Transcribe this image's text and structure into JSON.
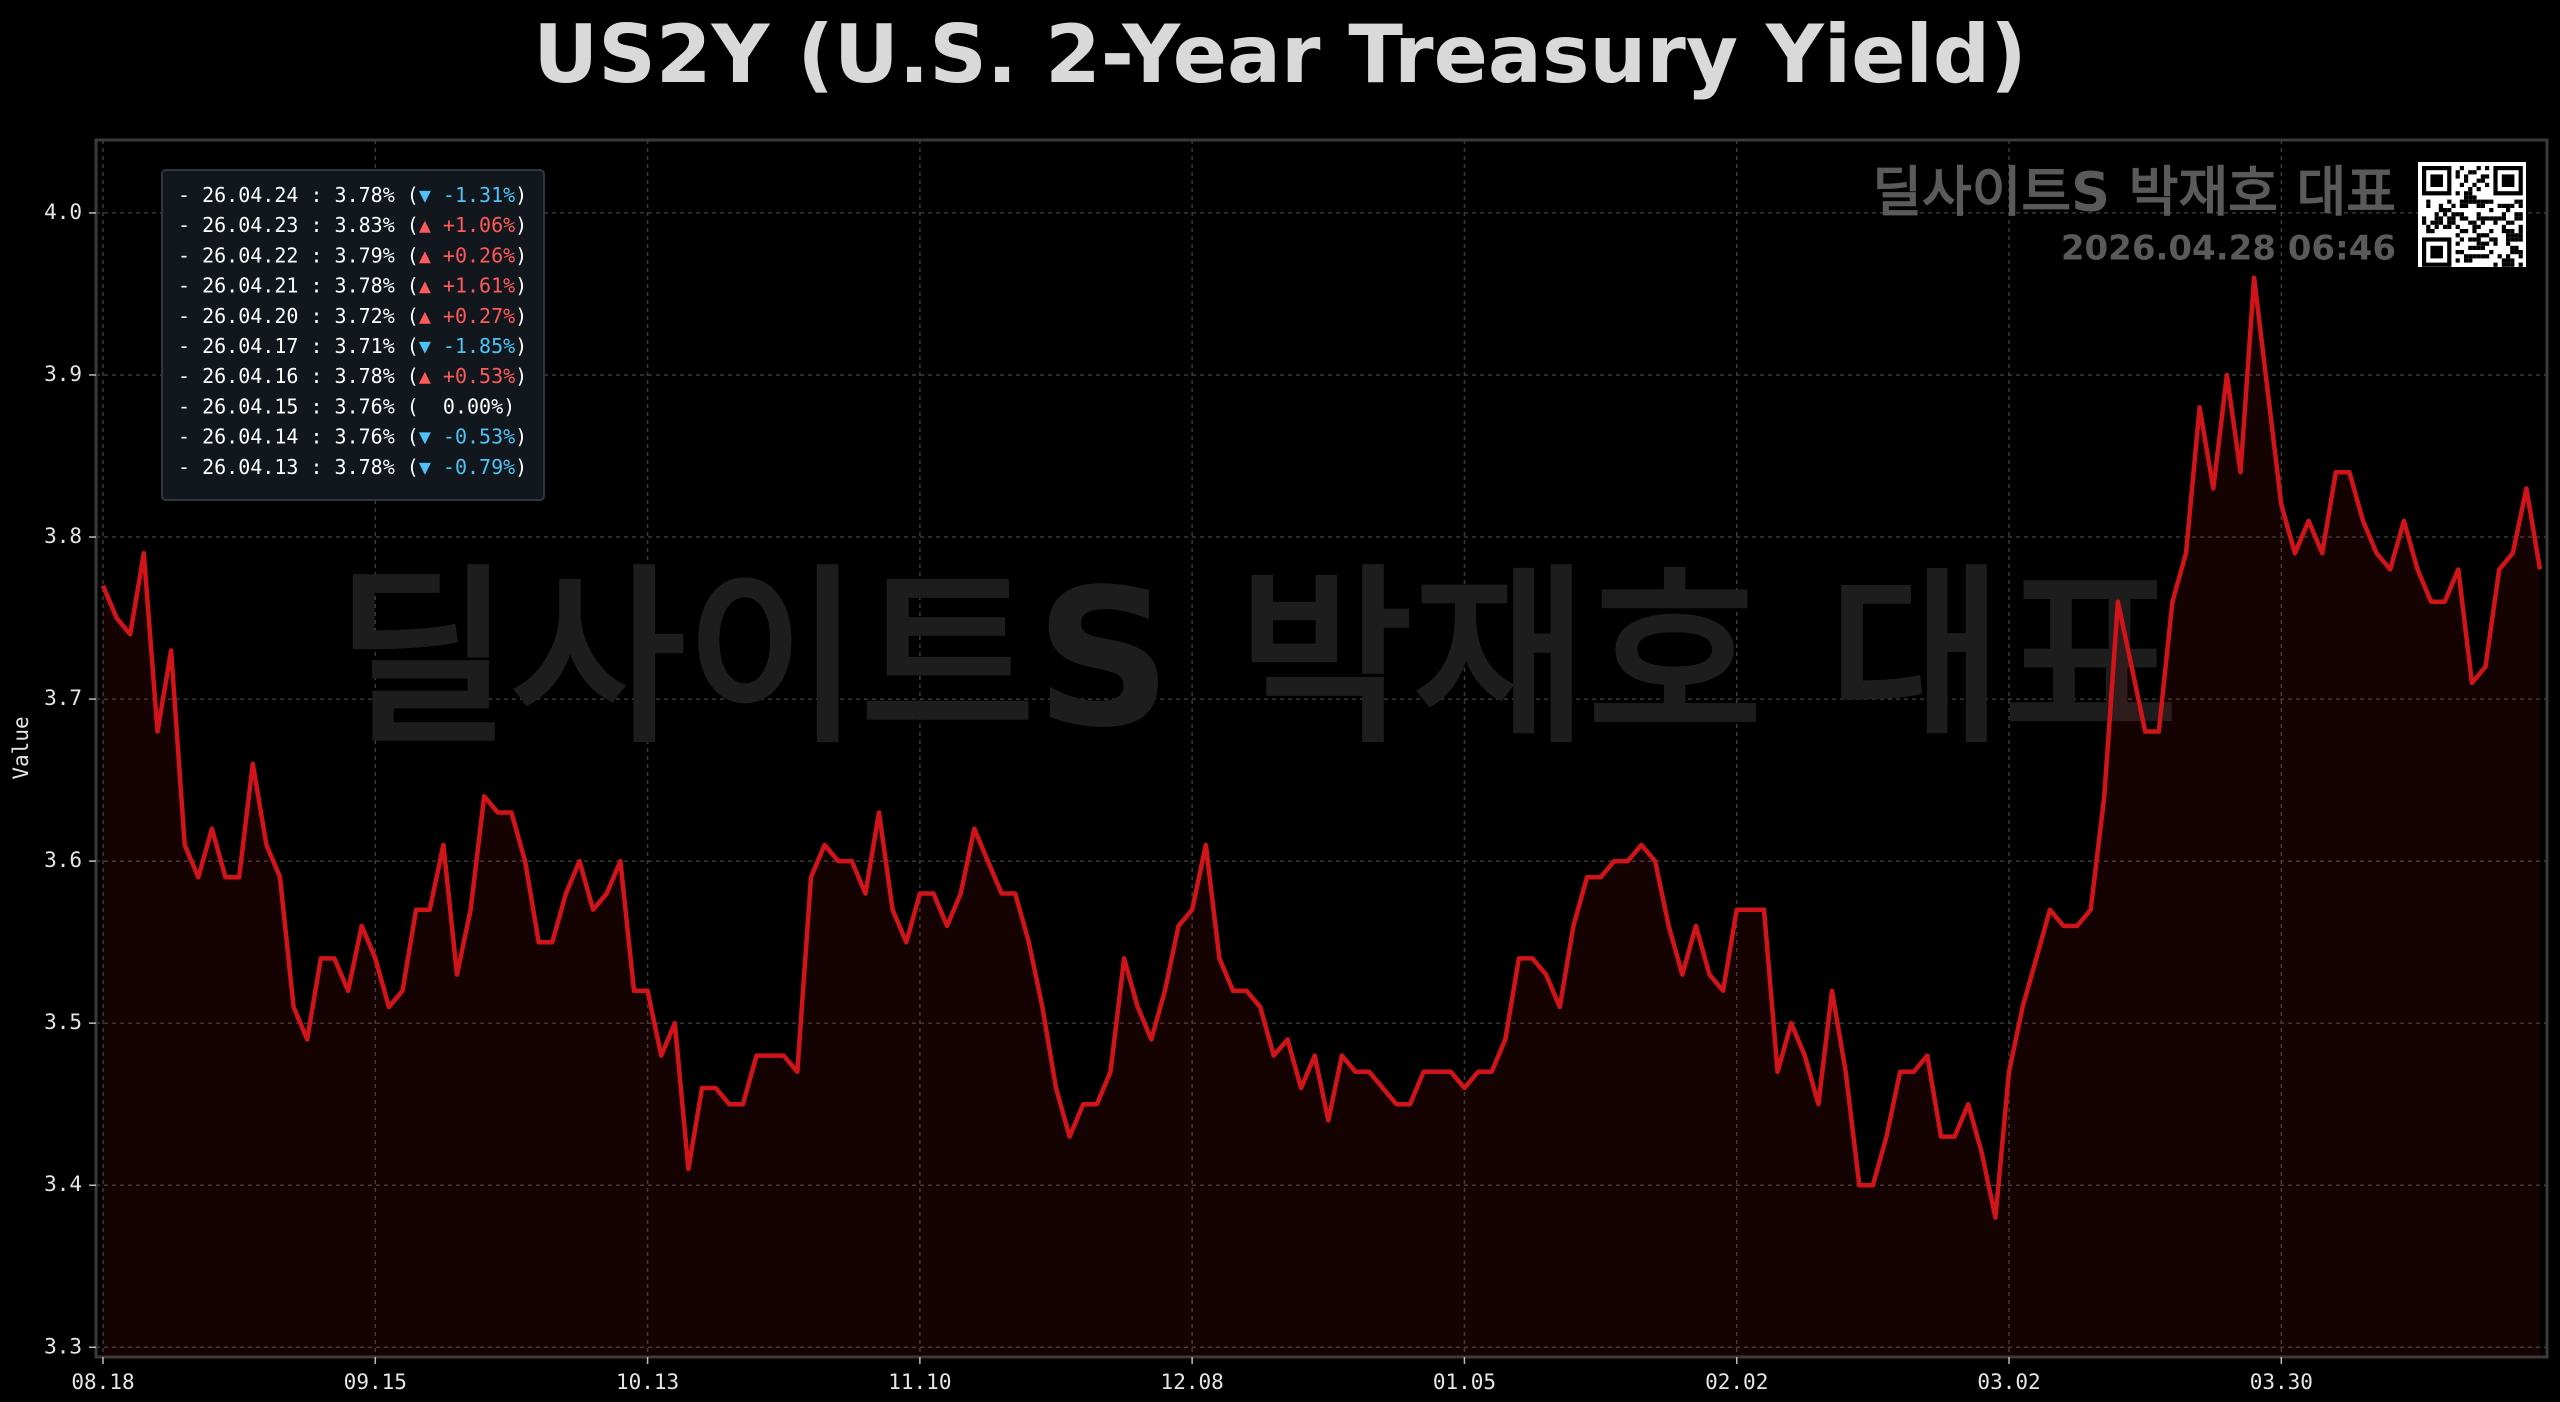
{
  "chart_data": {
    "type": "line",
    "title": "US2Y (U.S. 2-Year Treasury Yield)",
    "y_label": "Value",
    "watermark": "딜사이트S 박재호 대표",
    "brand": "딜사이트S 박재호 대표",
    "timestamp": "2026.04.28 06:46",
    "color": "#d0141a",
    "grid": true,
    "categories": [
      "08.18",
      null,
      null,
      null,
      null,
      null,
      null,
      null,
      null,
      null,
      null,
      null,
      null,
      null,
      null,
      null,
      null,
      null,
      null,
      null,
      "09.15",
      null,
      null,
      null,
      null,
      null,
      null,
      null,
      null,
      null,
      null,
      null,
      null,
      null,
      null,
      null,
      null,
      null,
      null,
      null,
      "10.13",
      null,
      null,
      null,
      null,
      null,
      null,
      null,
      null,
      null,
      null,
      null,
      null,
      null,
      null,
      null,
      null,
      null,
      null,
      null,
      "11.10",
      null,
      null,
      null,
      null,
      null,
      null,
      null,
      null,
      null,
      null,
      null,
      null,
      null,
      null,
      null,
      null,
      null,
      null,
      null,
      "12.08",
      null,
      null,
      null,
      null,
      null,
      null,
      null,
      null,
      null,
      null,
      null,
      null,
      null,
      null,
      null,
      null,
      null,
      null,
      null,
      "01.05",
      null,
      null,
      null,
      null,
      null,
      null,
      null,
      null,
      null,
      null,
      null,
      null,
      null,
      null,
      null,
      null,
      null,
      null,
      null,
      "02.02",
      null,
      null,
      null,
      null,
      null,
      null,
      null,
      null,
      null,
      null,
      null,
      null,
      null,
      null,
      null,
      null,
      null,
      null,
      null,
      "03.02",
      null,
      null,
      null,
      null,
      null,
      null,
      null,
      null,
      null,
      null,
      null,
      null,
      null,
      null,
      null,
      null,
      null,
      null,
      null,
      "03.30",
      null,
      null,
      null,
      null,
      null,
      null,
      null,
      null,
      null,
      null,
      null,
      null,
      null,
      null,
      null,
      null,
      null,
      null,
      null
    ],
    "values": [
      3.77,
      3.75,
      3.74,
      3.79,
      3.68,
      3.73,
      3.61,
      3.59,
      3.62,
      3.59,
      3.59,
      3.66,
      3.61,
      3.59,
      3.51,
      3.49,
      3.54,
      3.54,
      3.52,
      3.56,
      3.54,
      3.51,
      3.52,
      3.57,
      3.57,
      3.61,
      3.53,
      3.57,
      3.64,
      3.63,
      3.63,
      3.6,
      3.55,
      3.55,
      3.58,
      3.6,
      3.57,
      3.58,
      3.6,
      3.52,
      3.52,
      3.48,
      3.5,
      3.41,
      3.46,
      3.46,
      3.45,
      3.45,
      3.48,
      3.48,
      3.48,
      3.47,
      3.59,
      3.61,
      3.6,
      3.6,
      3.58,
      3.63,
      3.57,
      3.55,
      3.58,
      3.58,
      3.56,
      3.58,
      3.62,
      3.6,
      3.58,
      3.58,
      3.55,
      3.51,
      3.46,
      3.43,
      3.45,
      3.45,
      3.47,
      3.54,
      3.51,
      3.49,
      3.52,
      3.56,
      3.57,
      3.61,
      3.54,
      3.52,
      3.52,
      3.51,
      3.48,
      3.49,
      3.46,
      3.48,
      3.44,
      3.48,
      3.47,
      3.47,
      3.46,
      3.45,
      3.45,
      3.47,
      3.47,
      3.47,
      3.46,
      3.47,
      3.47,
      3.49,
      3.54,
      3.54,
      3.53,
      3.51,
      3.56,
      3.59,
      3.59,
      3.6,
      3.6,
      3.61,
      3.6,
      3.56,
      3.53,
      3.56,
      3.53,
      3.52,
      3.57,
      3.57,
      3.57,
      3.47,
      3.5,
      3.48,
      3.45,
      3.52,
      3.47,
      3.4,
      3.4,
      3.43,
      3.47,
      3.47,
      3.48,
      3.43,
      3.43,
      3.45,
      3.42,
      3.38,
      3.47,
      3.51,
      3.54,
      3.57,
      3.56,
      3.56,
      3.57,
      3.64,
      3.76,
      3.72,
      3.68,
      3.68,
      3.76,
      3.79,
      3.88,
      3.83,
      3.9,
      3.84,
      3.96,
      3.89,
      3.82,
      3.79,
      3.81,
      3.79,
      3.84,
      3.84,
      3.81,
      3.79,
      3.78,
      3.81,
      3.78,
      3.76,
      3.76,
      3.78,
      3.71,
      3.72,
      3.78,
      3.79,
      3.83,
      3.78
    ],
    "ylim": [
      3.294,
      4.045
    ],
    "yticks": [
      3.3,
      3.4,
      3.5,
      3.6,
      3.7,
      3.8,
      3.9,
      {
        "value": 4,
        "label": "4.0"
      }
    ],
    "recent": [
      {
        "prefix": "- 26.04.24 : 3.78% (",
        "change": "▼ -1.31%",
        "suffix": ")",
        "color": "#4fc3f7"
      },
      {
        "prefix": "- 26.04.23 : 3.83% (",
        "change": "▲ +1.06%",
        "suffix": ")",
        "color": "#ff5a5a"
      },
      {
        "prefix": "- 26.04.22 : 3.79% (",
        "change": "▲ +0.26%",
        "suffix": ")",
        "color": "#ff5a5a"
      },
      {
        "prefix": "- 26.04.21 : 3.78% (",
        "change": "▲ +1.61%",
        "suffix": ")",
        "color": "#ff5a5a"
      },
      {
        "prefix": "- 26.04.20 : 3.72% (",
        "change": "▲ +0.27%",
        "suffix": ")",
        "color": "#ff5a5a"
      },
      {
        "prefix": "- 26.04.17 : 3.71% (",
        "change": "▼ -1.85%",
        "suffix": ")",
        "color": "#4fc3f7"
      },
      {
        "prefix": "- 26.04.16 : 3.78% (",
        "change": "▲ +0.53%",
        "suffix": ")",
        "color": "#ff5a5a"
      },
      {
        "prefix": "- 26.04.15 : 3.76% (",
        "change": "  0.00%",
        "suffix": ")",
        "color": "#ffffff"
      },
      {
        "prefix": "- 26.04.14 : 3.76% (",
        "change": "▼ -0.53%",
        "suffix": ")",
        "color": "#4fc3f7"
      },
      {
        "prefix": "- 26.04.13 : 3.78% (",
        "change": "▼ -0.79%",
        "suffix": ")",
        "color": "#4fc3f7"
      }
    ]
  }
}
